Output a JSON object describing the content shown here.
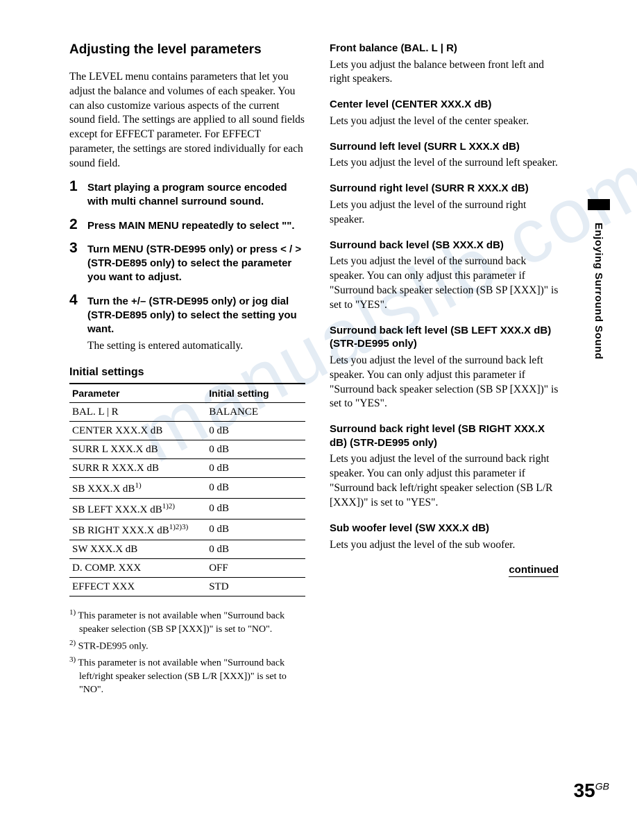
{
  "watermark": "manualslib.com",
  "sidebar": {
    "label": "Enjoying Surround Sound"
  },
  "left": {
    "title": "Adjusting the level parameters",
    "intro": "The LEVEL menu contains parameters that let you adjust the balance and volumes of each speaker. You can also customize various aspects of the current sound field. The settings are applied to all sound fields except for EFFECT parameter. For EFFECT parameter, the settings are stored individually for each sound field.",
    "steps": [
      {
        "num": "1",
        "bold": "Start playing a program source encoded with multi channel surround sound."
      },
      {
        "num": "2",
        "bold": "Press MAIN MENU repeatedly to select \"<LEVEL>\"."
      },
      {
        "num": "3",
        "bold": "Turn MENU (STR-DE995 only) or press < / > (STR-DE895 only) to select the parameter you want to adjust."
      },
      {
        "num": "4",
        "bold": "Turn the +/– (STR-DE995 only) or jog dial (STR-DE895 only) to select the setting you want.",
        "note": "The setting is entered automatically."
      }
    ],
    "table_title": "Initial settings",
    "table": {
      "headers": [
        "Parameter",
        "Initial setting"
      ],
      "rows": [
        [
          "BAL. L | R",
          "BALANCE"
        ],
        [
          "CENTER XXX.X dB",
          "0 dB"
        ],
        [
          "SURR L XXX.X dB",
          "0 dB"
        ],
        [
          "SURR R XXX.X dB",
          "0 dB"
        ],
        [
          "SB XXX.X dB<sup>1)</sup>",
          "0 dB"
        ],
        [
          "SB LEFT XXX.X dB<sup>1)2)</sup>",
          "0 dB"
        ],
        [
          "SB RIGHT XXX.X dB<sup>1)2)3)</sup>",
          "0 dB"
        ],
        [
          "SW XXX.X dB",
          "0 dB"
        ],
        [
          "D. COMP. XXX",
          "OFF"
        ],
        [
          "EFFECT XXX",
          "STD"
        ]
      ]
    },
    "footnotes": [
      {
        "sup": "1)",
        "text": "This parameter is not available when \"Surround back speaker selection (SB SP [XXX])\" is set to \"NO\"."
      },
      {
        "sup": "2)",
        "text": "STR-DE995 only."
      },
      {
        "sup": "3)",
        "text": "This parameter is not available when \"Surround back left/right speaker selection (SB L/R [XXX])\" is set to \"NO\"."
      }
    ]
  },
  "right": {
    "params": [
      {
        "heading": "Front balance (BAL. L | R)",
        "desc": "Lets you adjust the balance between front left and right speakers."
      },
      {
        "heading": "Center level (CENTER XXX.X dB)",
        "desc": "Lets you adjust the level of the center speaker."
      },
      {
        "heading": "Surround left level (SURR L XXX.X dB)",
        "desc": "Lets you adjust the level of the surround left speaker."
      },
      {
        "heading": "Surround right level (SURR R XXX.X dB)",
        "desc": "Lets you adjust the level of the surround right speaker."
      },
      {
        "heading": "Surround back level (SB XXX.X dB)",
        "desc": "Lets you adjust the level of the surround back speaker. You can only adjust this parameter if \"Surround back speaker selection (SB SP [XXX])\" is set to \"YES\"."
      },
      {
        "heading": "Surround back left level (SB LEFT XXX.X dB) (STR-DE995 only)",
        "desc": "Lets you adjust the level of the surround back left speaker. You can only adjust this parameter if \"Surround back speaker selection (SB SP [XXX])\" is set to \"YES\"."
      },
      {
        "heading": "Surround back right level (SB RIGHT XXX.X dB) (STR-DE995 only)",
        "desc": "Lets you adjust the level of the surround back right speaker. You can only adjust this parameter if \"Surround back left/right speaker selection (SB L/R [XXX])\" is set to \"YES\"."
      },
      {
        "heading": "Sub woofer level (SW XXX.X dB)",
        "desc": "Lets you adjust the level of the sub woofer."
      }
    ],
    "continued": "continued"
  },
  "page": {
    "number": "35",
    "suffix": "GB"
  }
}
